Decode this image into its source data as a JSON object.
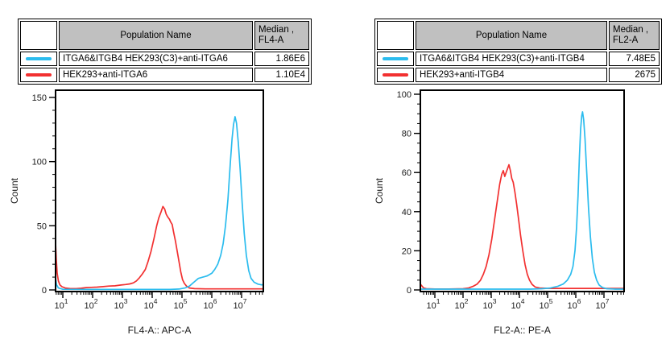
{
  "colors": {
    "cyan": "#2bbcee",
    "red": "#f23030",
    "table_header_bg": "#c0c0c0",
    "axis": "#000000"
  },
  "panels": [
    {
      "table": {
        "population_header": "Population Name",
        "median_header_line1": "Median ,",
        "median_header_line2": "FL4-A",
        "rows": [
          {
            "swatch_color": "#2bbcee",
            "name": "ITGA6&ITGB4 HEK293(C3)+anti-ITGA6",
            "median": "1.86E6"
          },
          {
            "swatch_color": "#f23030",
            "name": "HEK293+anti-ITGA6",
            "median": "1.10E4"
          }
        ]
      }
    },
    {
      "table": {
        "population_header": "Population Name",
        "median_header_line1": "Median ,",
        "median_header_line2": "FL2-A",
        "rows": [
          {
            "swatch_color": "#2bbcee",
            "name": "ITGA6&ITGB4 HEK293(C3)+anti-ITGB4",
            "median": "7.48E5"
          },
          {
            "swatch_color": "#f23030",
            "name": "HEK293+anti-ITGB4",
            "median": "2675"
          }
        ]
      }
    }
  ],
  "chart_data": [
    {
      "type": "line",
      "title": "",
      "xlabel": "FL4-A:: APC-A",
      "ylabel": "Count",
      "x_scale": "log",
      "x_range_log10": [
        0.757,
        7.73
      ],
      "x_major_ticks_log10": [
        1,
        2,
        3,
        4,
        5,
        6,
        7
      ],
      "x_tick_base": "10",
      "ylim": [
        0,
        155
      ],
      "y_major_ticks": [
        0,
        50,
        100,
        150
      ],
      "y_minor_step": 10,
      "grid": false,
      "legend_position": "none",
      "series": [
        {
          "name": "HEK293+anti-ITGA6",
          "color": "#f23030",
          "median": "1.10E4",
          "points": [
            [
              0.757,
              37
            ],
            [
              0.78,
              24
            ],
            [
              0.81,
              13
            ],
            [
              0.85,
              7
            ],
            [
              0.9,
              4
            ],
            [
              0.97,
              2.5
            ],
            [
              1.08,
              1.5
            ],
            [
              1.25,
              1
            ],
            [
              1.45,
              1
            ],
            [
              1.62,
              1.3
            ],
            [
              1.78,
              1.8
            ],
            [
              1.95,
              2
            ],
            [
              2.15,
              2.2
            ],
            [
              2.35,
              2.6
            ],
            [
              2.55,
              3
            ],
            [
              2.75,
              3.2
            ],
            [
              2.95,
              3.8
            ],
            [
              3.1,
              4.2
            ],
            [
              3.25,
              4.7
            ],
            [
              3.37,
              5.5
            ],
            [
              3.47,
              7
            ],
            [
              3.57,
              9.5
            ],
            [
              3.67,
              12.5
            ],
            [
              3.77,
              16
            ],
            [
              3.86,
              22
            ],
            [
              3.96,
              30
            ],
            [
              4.06,
              40
            ],
            [
              4.15,
              50
            ],
            [
              4.22,
              56
            ],
            [
              4.3,
              61
            ],
            [
              4.36,
              65
            ],
            [
              4.42,
              63
            ],
            [
              4.47,
              59
            ],
            [
              4.52,
              57
            ],
            [
              4.58,
              55
            ],
            [
              4.62,
              53
            ],
            [
              4.67,
              51
            ],
            [
              4.72,
              45
            ],
            [
              4.78,
              38
            ],
            [
              4.84,
              30
            ],
            [
              4.9,
              22
            ],
            [
              4.96,
              14
            ],
            [
              5.02,
              8
            ],
            [
              5.08,
              5
            ],
            [
              5.15,
              3
            ],
            [
              5.25,
              1.5
            ],
            [
              5.42,
              1
            ],
            [
              5.8,
              0.8
            ],
            [
              6.5,
              0.8
            ],
            [
              7.2,
              0.8
            ],
            [
              7.73,
              0.8
            ]
          ]
        },
        {
          "name": "ITGA6&ITGB4 HEK293(C3)+anti-ITGA6",
          "color": "#2bbcee",
          "median": "1.86E6",
          "points": [
            [
              0.757,
              9
            ],
            [
              0.79,
              4
            ],
            [
              0.85,
              1.5
            ],
            [
              1.0,
              0.5
            ],
            [
              2.0,
              0.4
            ],
            [
              3.0,
              0.4
            ],
            [
              4.0,
              0.4
            ],
            [
              4.6,
              0.4
            ],
            [
              4.9,
              0.7
            ],
            [
              5.1,
              1.5
            ],
            [
              5.25,
              3
            ],
            [
              5.4,
              6
            ],
            [
              5.55,
              9
            ],
            [
              5.7,
              10
            ],
            [
              5.85,
              11
            ],
            [
              6.0,
              13
            ],
            [
              6.1,
              16
            ],
            [
              6.2,
              20
            ],
            [
              6.3,
              27
            ],
            [
              6.38,
              36
            ],
            [
              6.46,
              50
            ],
            [
              6.54,
              70
            ],
            [
              6.62,
              98
            ],
            [
              6.68,
              118
            ],
            [
              6.73,
              129
            ],
            [
              6.78,
              135
            ],
            [
              6.83,
              130
            ],
            [
              6.89,
              115
            ],
            [
              6.95,
              95
            ],
            [
              7.02,
              68
            ],
            [
              7.09,
              44
            ],
            [
              7.16,
              27
            ],
            [
              7.24,
              15
            ],
            [
              7.32,
              9
            ],
            [
              7.42,
              6
            ],
            [
              7.55,
              4.5
            ],
            [
              7.65,
              4
            ],
            [
              7.73,
              4
            ]
          ]
        }
      ]
    },
    {
      "type": "line",
      "title": "",
      "xlabel": "FL2-A:: PE-A",
      "ylabel": "Count",
      "x_scale": "log",
      "x_range_log10": [
        0.486,
        7.714
      ],
      "x_major_ticks_log10": [
        1,
        2,
        3,
        4,
        5,
        6,
        7
      ],
      "x_tick_base": "10",
      "ylim": [
        0,
        104
      ],
      "y_major_ticks": [
        0,
        20,
        40,
        60,
        80,
        100
      ],
      "y_minor_step": 5,
      "grid": false,
      "legend_position": "none",
      "series": [
        {
          "name": "HEK293+anti-ITGB4",
          "color": "#f23030",
          "median": "2675",
          "points": [
            [
              0.486,
              3
            ],
            [
              0.54,
              2
            ],
            [
              0.6,
              1
            ],
            [
              0.7,
              0.6
            ],
            [
              1.0,
              0.5
            ],
            [
              1.5,
              0.5
            ],
            [
              2.0,
              0.6
            ],
            [
              2.2,
              1
            ],
            [
              2.35,
              1.8
            ],
            [
              2.5,
              3
            ],
            [
              2.62,
              5
            ],
            [
              2.72,
              8
            ],
            [
              2.82,
              12
            ],
            [
              2.92,
              18
            ],
            [
              3.02,
              26
            ],
            [
              3.12,
              36
            ],
            [
              3.22,
              46
            ],
            [
              3.3,
              54
            ],
            [
              3.37,
              59
            ],
            [
              3.43,
              61
            ],
            [
              3.48,
              58
            ],
            [
              3.53,
              60
            ],
            [
              3.58,
              62
            ],
            [
              3.63,
              64
            ],
            [
              3.68,
              61
            ],
            [
              3.73,
              57
            ],
            [
              3.78,
              55
            ],
            [
              3.84,
              50
            ],
            [
              3.9,
              44
            ],
            [
              3.97,
              36
            ],
            [
              4.04,
              28
            ],
            [
              4.12,
              20
            ],
            [
              4.2,
              13
            ],
            [
              4.28,
              8
            ],
            [
              4.36,
              5
            ],
            [
              4.45,
              2.8
            ],
            [
              4.56,
              1.5
            ],
            [
              4.72,
              1
            ],
            [
              5.1,
              0.8
            ],
            [
              5.8,
              0.8
            ],
            [
              6.6,
              0.8
            ],
            [
              7.714,
              0.8
            ]
          ]
        },
        {
          "name": "ITGA6&ITGB4 HEK293(C3)+anti-ITGB4",
          "color": "#2bbcee",
          "median": "7.48E5",
          "points": [
            [
              0.486,
              0.4
            ],
            [
              1.5,
              0.4
            ],
            [
              3.0,
              0.4
            ],
            [
              4.4,
              0.4
            ],
            [
              4.8,
              0.6
            ],
            [
              5.1,
              1
            ],
            [
              5.35,
              1.8
            ],
            [
              5.55,
              3
            ],
            [
              5.7,
              5
            ],
            [
              5.82,
              8
            ],
            [
              5.9,
              12
            ],
            [
              5.97,
              20
            ],
            [
              6.03,
              32
            ],
            [
              6.08,
              48
            ],
            [
              6.13,
              68
            ],
            [
              6.17,
              82
            ],
            [
              6.21,
              89
            ],
            [
              6.24,
              91
            ],
            [
              6.28,
              87
            ],
            [
              6.33,
              77
            ],
            [
              6.39,
              60
            ],
            [
              6.45,
              42
            ],
            [
              6.52,
              27
            ],
            [
              6.59,
              16
            ],
            [
              6.66,
              9
            ],
            [
              6.74,
              5
            ],
            [
              6.83,
              2.5
            ],
            [
              6.95,
              1.2
            ],
            [
              7.1,
              0.6
            ],
            [
              7.4,
              0.4
            ],
            [
              7.714,
              0.4
            ]
          ]
        }
      ]
    }
  ]
}
